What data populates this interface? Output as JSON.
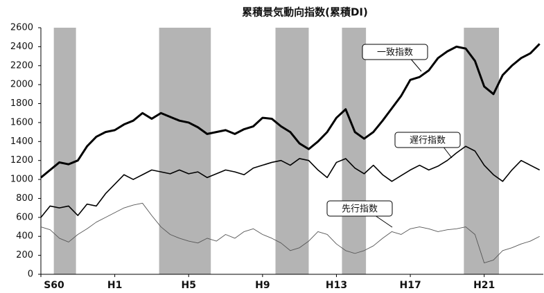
{
  "chart_data": {
    "type": "line",
    "title": "累積景気動向指数(累積DI)",
    "x": [
      1985,
      1985.5,
      1986,
      1986.5,
      1987,
      1987.5,
      1988,
      1988.5,
      1989,
      1989.5,
      1990,
      1990.5,
      1991,
      1991.5,
      1992,
      1992.5,
      1993,
      1993.5,
      1994,
      1994.5,
      1995,
      1995.5,
      1996,
      1996.5,
      1997,
      1997.5,
      1998,
      1998.5,
      1999,
      1999.5,
      2000,
      2000.5,
      2001,
      2001.5,
      2002,
      2002.5,
      2003,
      2003.5,
      2004,
      2004.5,
      2005,
      2005.5,
      2006,
      2006.5,
      2007,
      2007.5,
      2008,
      2008.5,
      2009,
      2009.5,
      2010,
      2010.5,
      2011,
      2011.5,
      2012
    ],
    "xlim": [
      1985,
      2012.2
    ],
    "xticks": [
      {
        "value": 1985,
        "label": "S60"
      },
      {
        "value": 1989,
        "label": "H1"
      },
      {
        "value": 1993,
        "label": "H5"
      },
      {
        "value": 1997,
        "label": "H9"
      },
      {
        "value": 2001,
        "label": "H13"
      },
      {
        "value": 2005,
        "label": "H17"
      },
      {
        "value": 2009,
        "label": "H21"
      }
    ],
    "ylim": [
      0,
      2600
    ],
    "yticks": [
      0,
      200,
      400,
      600,
      800,
      1000,
      1200,
      1400,
      1600,
      1800,
      2000,
      2200,
      2400,
      2600
    ],
    "grid": false,
    "band_color": "#b4b4b4",
    "recession_bands": [
      [
        1985.7,
        1986.9
      ],
      [
        1991.4,
        1994.2
      ],
      [
        1997.7,
        1999.5
      ],
      [
        2001.3,
        2002.6
      ],
      [
        2007.9,
        2009.8
      ]
    ],
    "series": [
      {
        "name": "一致指数",
        "color": "#000000",
        "width": 3,
        "values": [
          1020,
          1100,
          1180,
          1160,
          1200,
          1350,
          1450,
          1500,
          1520,
          1580,
          1620,
          1700,
          1640,
          1700,
          1660,
          1620,
          1600,
          1550,
          1480,
          1500,
          1520,
          1480,
          1530,
          1560,
          1650,
          1640,
          1560,
          1500,
          1380,
          1320,
          1400,
          1500,
          1650,
          1740,
          1500,
          1430,
          1500,
          1620,
          1750,
          1880,
          2050,
          2080,
          2150,
          2280,
          2350,
          2400,
          2380,
          2250,
          1980,
          1900,
          2100,
          2200,
          2280,
          2330,
          2430
        ]
      },
      {
        "name": "遅行指数",
        "color": "#000000",
        "width": 1.6,
        "values": [
          600,
          720,
          700,
          720,
          620,
          740,
          720,
          850,
          950,
          1050,
          1000,
          1050,
          1100,
          1080,
          1060,
          1100,
          1060,
          1080,
          1020,
          1060,
          1100,
          1080,
          1050,
          1120,
          1150,
          1180,
          1200,
          1150,
          1220,
          1200,
          1100,
          1020,
          1180,
          1220,
          1120,
          1060,
          1150,
          1050,
          980,
          1040,
          1100,
          1150,
          1100,
          1140,
          1200,
          1280,
          1350,
          1300,
          1150,
          1050,
          980,
          1100,
          1200,
          1150,
          1100
        ]
      },
      {
        "name": "先行指数",
        "color": "#555555",
        "width": 0.9,
        "values": [
          500,
          470,
          380,
          340,
          420,
          480,
          550,
          600,
          650,
          700,
          730,
          750,
          620,
          500,
          420,
          380,
          350,
          330,
          380,
          350,
          420,
          380,
          450,
          480,
          420,
          380,
          330,
          250,
          280,
          350,
          450,
          420,
          320,
          250,
          220,
          250,
          300,
          380,
          450,
          420,
          480,
          500,
          480,
          450,
          470,
          480,
          500,
          420,
          120,
          150,
          250,
          280,
          320,
          350,
          400
        ]
      }
    ]
  }
}
